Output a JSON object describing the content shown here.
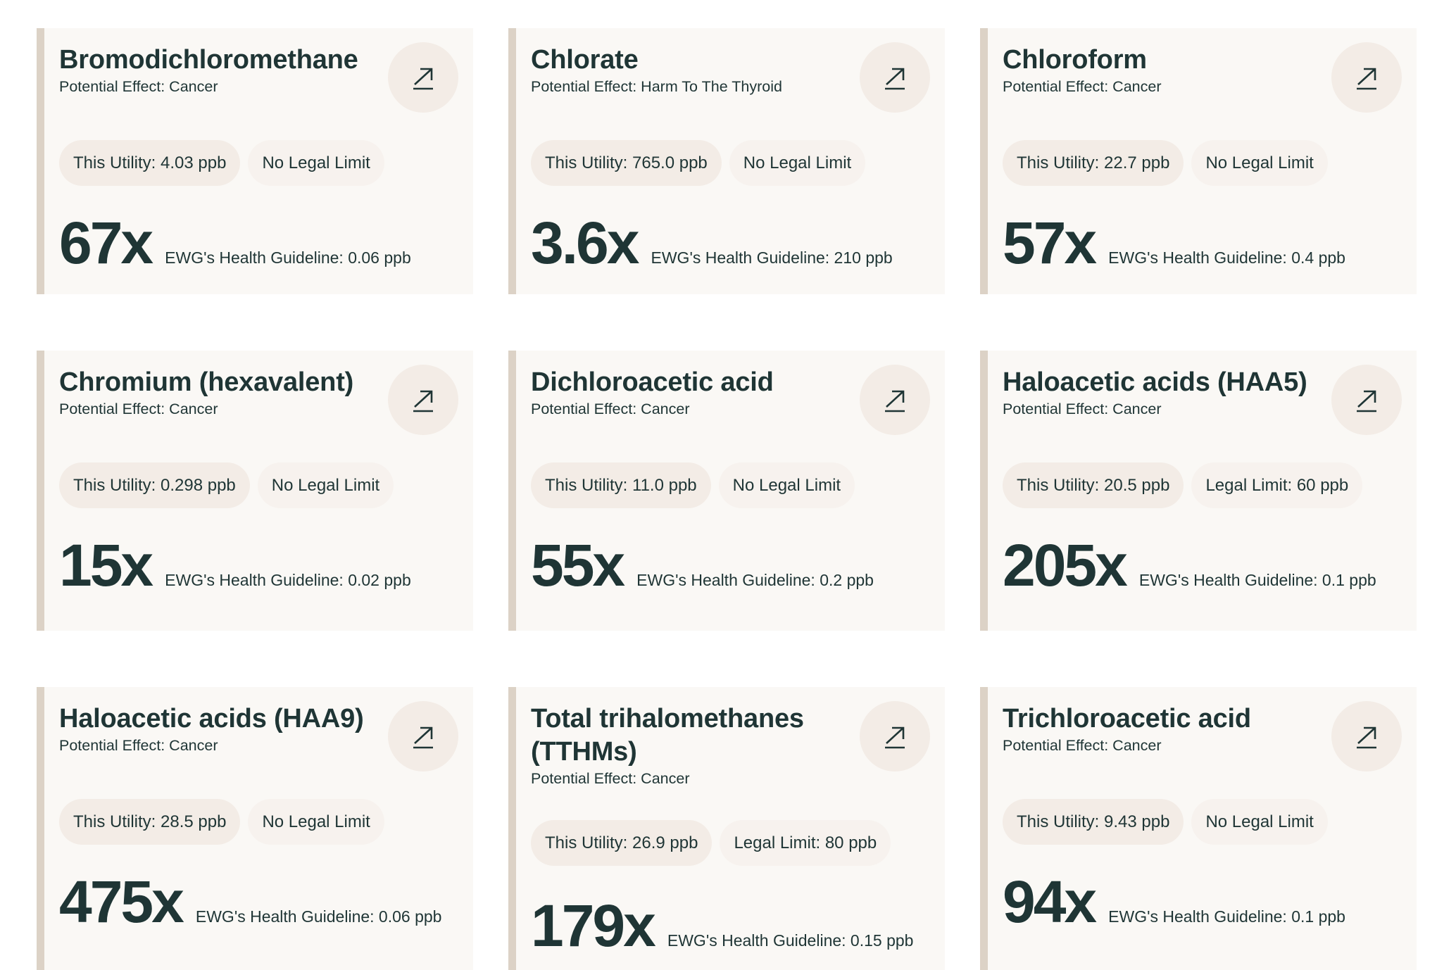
{
  "cards": [
    {
      "name": "Bromodichloromethane",
      "effect": "Potential Effect: Cancer",
      "utility": "This Utility: 4.03 ppb",
      "limit": "No Legal Limit",
      "factor": "67x",
      "guideline": "EWG's Health Guideline: 0.06 ppb"
    },
    {
      "name": "Chlorate",
      "effect": "Potential Effect: Harm To The Thyroid",
      "utility": "This Utility: 765.0 ppb",
      "limit": "No Legal Limit",
      "factor": "3.6x",
      "guideline": "EWG's Health Guideline: 210 ppb"
    },
    {
      "name": "Chloroform",
      "effect": "Potential Effect: Cancer",
      "utility": "This Utility: 22.7 ppb",
      "limit": "No Legal Limit",
      "factor": "57x",
      "guideline": "EWG's Health Guideline: 0.4 ppb"
    },
    {
      "name": "Chromium (hexavalent)",
      "effect": "Potential Effect: Cancer",
      "utility": "This Utility: 0.298 ppb",
      "limit": "No Legal Limit",
      "factor": "15x",
      "guideline": "EWG's Health Guideline: 0.02 ppb"
    },
    {
      "name": "Dichloroacetic acid",
      "effect": "Potential Effect: Cancer",
      "utility": "This Utility: 11.0 ppb",
      "limit": "No Legal Limit",
      "factor": "55x",
      "guideline": "EWG's Health Guideline: 0.2 ppb"
    },
    {
      "name": "Haloacetic acids (HAA5)",
      "effect": "Potential Effect: Cancer",
      "utility": "This Utility: 20.5 ppb",
      "limit": "Legal Limit: 60 ppb",
      "factor": "205x",
      "guideline": "EWG's Health Guideline: 0.1 ppb"
    },
    {
      "name": "Haloacetic acids (HAA9)",
      "effect": "Potential Effect: Cancer",
      "utility": "This Utility: 28.5 ppb",
      "limit": "No Legal Limit",
      "factor": "475x",
      "guideline": "EWG's Health Guideline: 0.06 ppb"
    },
    {
      "name": "Total trihalomethanes (TTHMs)",
      "effect": "Potential Effect: Cancer",
      "utility": "This Utility: 26.9 ppb",
      "limit": "Legal Limit: 80 ppb",
      "factor": "179x",
      "guideline": "EWG's Health Guideline: 0.15 ppb"
    },
    {
      "name": "Trichloroacetic acid",
      "effect": "Potential Effect: Cancer",
      "utility": "This Utility: 9.43 ppb",
      "limit": "No Legal Limit",
      "factor": "94x",
      "guideline": "EWG's Health Guideline: 0.1 ppb"
    }
  ],
  "icons": {
    "link": "arrow-up-right-icon"
  },
  "colors": {
    "accent_border": "#dcd2c6",
    "card_bg": "#faf8f5",
    "text": "#1f3535",
    "pill_bg": "#f3ece6"
  }
}
